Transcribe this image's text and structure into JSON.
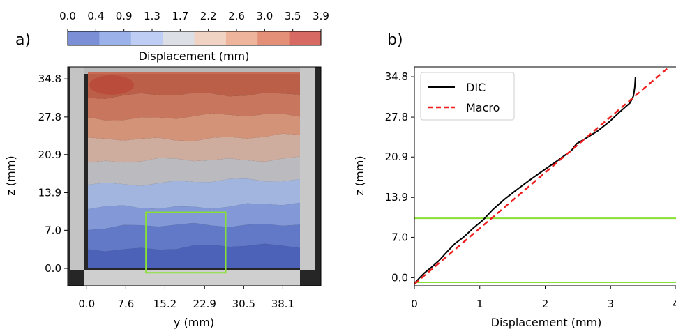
{
  "colorbar": {
    "label": "Displacement (mm)",
    "ticks": [
      "0.0",
      "0.4",
      "0.9",
      "1.3",
      "1.7",
      "2.2",
      "2.6",
      "3.0",
      "3.5",
      "3.9"
    ],
    "colors": [
      "#7b8fd6",
      "#9bb1ea",
      "#bdcdf3",
      "#dcdfe6",
      "#f1d3c4",
      "#efb59c",
      "#e48f77",
      "#d76a63"
    ]
  },
  "chart_data": [
    {
      "type": "heatmap",
      "panel_label": "a)",
      "xlabel": "y (mm)",
      "ylabel": "z (mm)",
      "xticks": [
        "0.0",
        "7.6",
        "15.2",
        "22.9",
        "30.5",
        "38.1"
      ],
      "yticks": [
        "0.0",
        "7.0",
        "13.9",
        "20.9",
        "27.8",
        "34.8"
      ],
      "x_tick_values": [
        0.0,
        7.6,
        15.2,
        22.9,
        30.5,
        38.1
      ],
      "y_tick_values": [
        0.0,
        7.0,
        13.9,
        20.9,
        27.8,
        34.8
      ],
      "bands_bottom_to_top": [
        {
          "z_range": [
            0.0,
            3.5
          ],
          "displacement": 0.2,
          "color": "#4f66c4"
        },
        {
          "z_range": [
            3.5,
            7.5
          ],
          "displacement": 0.6,
          "color": "#6680d4"
        },
        {
          "z_range": [
            7.5,
            11.0
          ],
          "displacement": 1.0,
          "color": "#8aa2e6"
        },
        {
          "z_range": [
            11.0,
            15.5
          ],
          "displacement": 1.4,
          "color": "#adc1ef"
        },
        {
          "z_range": [
            15.5,
            19.5
          ],
          "displacement": 1.9,
          "color": "#c8c8cc"
        },
        {
          "z_range": [
            19.5,
            23.5
          ],
          "displacement": 2.3,
          "color": "#dcb9a9"
        },
        {
          "z_range": [
            23.5,
            27.5
          ],
          "displacement": 2.7,
          "color": "#e29c80"
        },
        {
          "z_range": [
            27.5,
            31.5
          ],
          "displacement": 3.1,
          "color": "#d67e63"
        },
        {
          "z_range": [
            31.5,
            35.5
          ],
          "displacement": 3.5,
          "color": "#c9644c"
        }
      ],
      "roi_box": {
        "y_range": [
          11.5,
          27.0
        ],
        "z_range": [
          -0.8,
          10.3
        ],
        "color": "#88e036"
      }
    },
    {
      "type": "line",
      "panel_label": "b)",
      "xlabel": "Displacement (mm)",
      "ylabel": "z (mm)",
      "xticks": [
        "0",
        "1",
        "2",
        "3",
        "4"
      ],
      "yticks": [
        "0.0",
        "7.0",
        "13.9",
        "20.9",
        "27.8",
        "34.8"
      ],
      "xlim": [
        0,
        4
      ],
      "ylim": [
        -1.4,
        36.5
      ],
      "legend": {
        "placement": "top-left"
      },
      "series": [
        {
          "name": "DIC",
          "color": "#000000",
          "style": "solid",
          "points": [
            [
              0.0,
              -1.0
            ],
            [
              0.08,
              0.0
            ],
            [
              0.15,
              0.8
            ],
            [
              0.25,
              1.7
            ],
            [
              0.38,
              3.0
            ],
            [
              0.5,
              4.5
            ],
            [
              0.62,
              5.9
            ],
            [
              0.75,
              7.0
            ],
            [
              0.9,
              8.6
            ],
            [
              1.05,
              10.0
            ],
            [
              1.2,
              11.8
            ],
            [
              1.38,
              13.6
            ],
            [
              1.55,
              15.1
            ],
            [
              1.75,
              16.8
            ],
            [
              1.95,
              18.4
            ],
            [
              2.18,
              20.2
            ],
            [
              2.4,
              22.0
            ],
            [
              2.48,
              23.2
            ],
            [
              2.6,
              24.0
            ],
            [
              2.8,
              25.4
            ],
            [
              2.98,
              27.0
            ],
            [
              3.15,
              28.8
            ],
            [
              3.3,
              30.3
            ],
            [
              3.35,
              31.5
            ],
            [
              3.37,
              33.0
            ],
            [
              3.38,
              34.8
            ]
          ]
        },
        {
          "name": "Macro",
          "color": "#ee1c1c",
          "style": "dashed",
          "points": [
            [
              0.0,
              -1.1
            ],
            [
              4.0,
              37.5
            ]
          ]
        }
      ],
      "hlines": [
        {
          "y": 10.3,
          "color": "#88e036"
        },
        {
          "y": -0.8,
          "color": "#88e036"
        }
      ]
    }
  ]
}
